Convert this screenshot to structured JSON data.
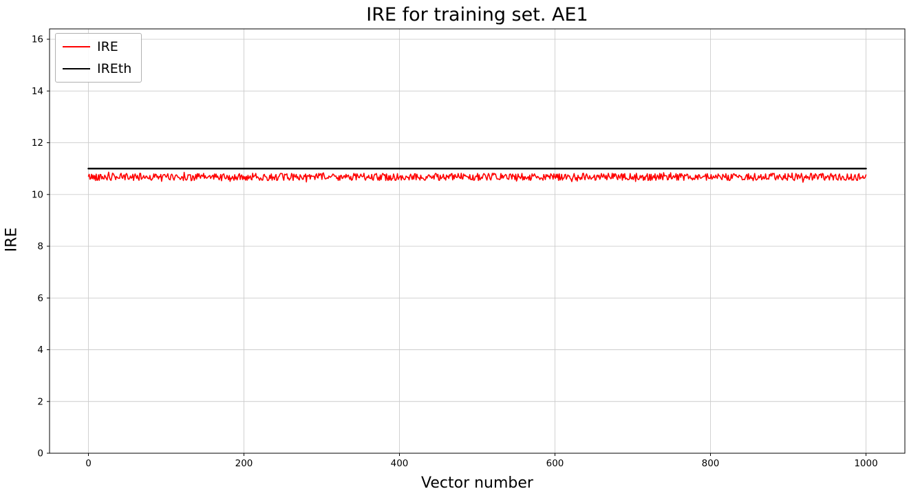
{
  "chart_data": {
    "type": "line",
    "title": "IRE for training set. AE1",
    "xlabel": "Vector number",
    "ylabel": "IRE",
    "xlim": [
      -50,
      1050
    ],
    "ylim": [
      0,
      16.4
    ],
    "xticks": [
      0,
      200,
      400,
      600,
      800,
      1000
    ],
    "yticks": [
      0,
      2,
      4,
      6,
      8,
      10,
      12,
      14,
      16
    ],
    "grid": true,
    "grid_color": "#cccccc",
    "legend_position": "upper left",
    "x_range": [
      0,
      1000
    ],
    "n_points": 1000,
    "series": [
      {
        "name": "IRE",
        "color": "#ff0000",
        "kind": "noisy-constant",
        "mean": 10.68,
        "noise_amplitude": 0.14,
        "linewidth": 1.6
      },
      {
        "name": "IREth",
        "color": "#000000",
        "kind": "constant",
        "value": 11.0,
        "linewidth": 2.5
      }
    ]
  }
}
